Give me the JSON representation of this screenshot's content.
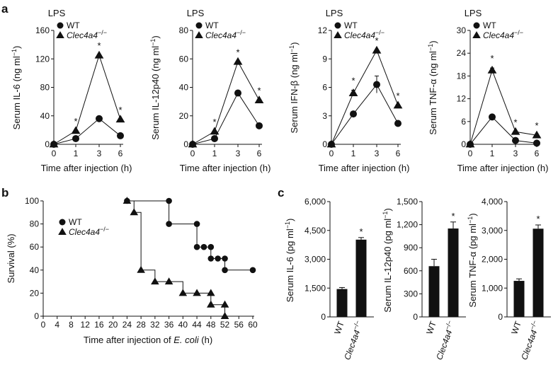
{
  "panels": {
    "a": "a",
    "b": "b",
    "c": "c"
  },
  "legend": {
    "wt": "WT",
    "ko": "Clec4a4",
    "ko_sup": "−/−"
  },
  "chart_data": [
    {
      "id": "a-il6",
      "type": "line",
      "title": "LPS",
      "ylabel": "Serum IL-6 (ng ml",
      "ylabel_sup": "−1",
      "ylabel_end": ")",
      "xlabel": "Time after injection (h)",
      "x": [
        0,
        1,
        3,
        6
      ],
      "x_ticks": [
        "0",
        "1",
        "3",
        "6"
      ],
      "ylim": [
        0,
        160
      ],
      "y_ticks": [
        "0",
        "40",
        "80",
        "120",
        "160"
      ],
      "series": [
        {
          "name": "WT",
          "marker": "circle",
          "values": [
            0,
            8,
            36,
            12
          ]
        },
        {
          "name": "Clec4a4−/−",
          "marker": "triangle",
          "values": [
            0,
            19,
            125,
            35
          ]
        }
      ],
      "significant": [
        false,
        true,
        true,
        true
      ],
      "sig_label": "*"
    },
    {
      "id": "a-il12",
      "type": "line",
      "title": "LPS",
      "ylabel": "Serum IL-12p40 (ng ml",
      "ylabel_sup": "−1",
      "ylabel_end": ")",
      "xlabel": "Time after injection (h)",
      "x": [
        0,
        1,
        3,
        6
      ],
      "x_ticks": [
        "0",
        "1",
        "3",
        "6"
      ],
      "ylim": [
        0,
        80
      ],
      "y_ticks": [
        "0",
        "20",
        "40",
        "60",
        "80"
      ],
      "series": [
        {
          "name": "WT",
          "marker": "circle",
          "values": [
            0,
            4,
            36,
            13
          ]
        },
        {
          "name": "Clec4a4−/−",
          "marker": "triangle",
          "values": [
            0,
            9,
            58,
            31
          ]
        }
      ],
      "significant": [
        false,
        true,
        true,
        true
      ],
      "sig_label": "*"
    },
    {
      "id": "a-ifnb",
      "type": "line",
      "title": "LPS",
      "ylabel": "Serum IFN-β (ng ml",
      "ylabel_sup": "−1",
      "ylabel_end": ")",
      "xlabel": "Time after injection (h)",
      "x": [
        0,
        1,
        3,
        6
      ],
      "x_ticks": [
        "0",
        "1",
        "3",
        "6"
      ],
      "ylim": [
        0,
        12
      ],
      "y_ticks": [
        "0",
        "3",
        "6",
        "9",
        "12"
      ],
      "series": [
        {
          "name": "WT",
          "marker": "circle",
          "values": [
            0,
            3.2,
            6.3,
            2.2
          ],
          "errors": [
            0,
            0,
            0.9,
            0
          ]
        },
        {
          "name": "Clec4a4−/−",
          "marker": "triangle",
          "values": [
            0,
            5.4,
            9.9,
            4.1
          ],
          "errors": [
            0,
            0.3,
            0,
            0
          ]
        }
      ],
      "significant": [
        false,
        true,
        true,
        true
      ],
      "sig_label": "*"
    },
    {
      "id": "a-tnfa",
      "type": "line",
      "title": "LPS",
      "ylabel": "Serum TNF-α (ng ml",
      "ylabel_sup": "−1",
      "ylabel_end": ")",
      "xlabel": "Time after injection (h)",
      "x": [
        0,
        1,
        3,
        6
      ],
      "x_ticks": [
        "0",
        "1",
        "3",
        "6"
      ],
      "ylim": [
        0,
        30
      ],
      "y_ticks": [
        "0",
        "6",
        "12",
        "18",
        "24",
        "30"
      ],
      "series": [
        {
          "name": "WT",
          "marker": "circle",
          "values": [
            0,
            7.2,
            1.0,
            0.3
          ]
        },
        {
          "name": "Clec4a4−/−",
          "marker": "triangle",
          "values": [
            0,
            19.5,
            3.3,
            2.4
          ],
          "errors": [
            0,
            0.6,
            0,
            0
          ]
        }
      ],
      "significant": [
        false,
        true,
        true,
        true
      ],
      "sig_label": "*"
    },
    {
      "id": "b-survival",
      "type": "line",
      "step": true,
      "ylabel": "Survival (%)",
      "xlabel_pre": "Time after injection of ",
      "xlabel_ital": "E. coli",
      "xlabel_post": " (h)",
      "xlim": [
        0,
        60
      ],
      "ylim": [
        0,
        100
      ],
      "x_ticks": [
        "0",
        "4",
        "8",
        "12",
        "16",
        "20",
        "24",
        "28",
        "32",
        "36",
        "40",
        "44",
        "48",
        "52",
        "56",
        "60"
      ],
      "y_ticks": [
        "0",
        "20",
        "40",
        "60",
        "80",
        "100"
      ],
      "series": [
        {
          "name": "WT",
          "marker": "circle",
          "x": [
            24,
            36,
            36,
            44,
            44,
            46,
            48,
            48,
            50,
            52,
            52,
            60
          ],
          "values": [
            100,
            100,
            80,
            80,
            60,
            60,
            60,
            50,
            50,
            50,
            40,
            40
          ]
        },
        {
          "name": "Clec4a4−/−",
          "marker": "triangle",
          "x": [
            24,
            26,
            28,
            32,
            36,
            40,
            44,
            48,
            48,
            52,
            52
          ],
          "values": [
            100,
            90,
            40,
            30,
            30,
            20,
            20,
            20,
            10,
            10,
            0
          ]
        }
      ]
    },
    {
      "id": "c-il6",
      "type": "bar",
      "ylabel": "Serum IL-6 (pg ml",
      "ylabel_sup": "−1",
      "ylabel_end": ")",
      "categories": [
        "WT",
        "Clec4a4−/−"
      ],
      "values": [
        1450,
        4020
      ],
      "errors": [
        80,
        110
      ],
      "ylim": [
        0,
        6000
      ],
      "y_ticks": [
        "0",
        "1,500",
        "3,000",
        "4,500",
        "6,000"
      ],
      "significant": [
        false,
        true
      ],
      "sig_label": "*"
    },
    {
      "id": "c-il12",
      "type": "bar",
      "ylabel": "Serum IL-12p40 (pg ml",
      "ylabel_sup": "−1",
      "ylabel_end": ")",
      "categories": [
        "WT",
        "Clec4a4−/−"
      ],
      "values": [
        660,
        1150
      ],
      "errors": [
        90,
        85
      ],
      "ylim": [
        0,
        1500
      ],
      "y_ticks": [
        "0",
        "300",
        "600",
        "900",
        "1,200",
        "1,500"
      ],
      "significant": [
        false,
        true
      ],
      "sig_label": "*"
    },
    {
      "id": "c-tnfa",
      "type": "bar",
      "ylabel": "Serum TNF-α (pg ml",
      "ylabel_sup": "−1",
      "ylabel_end": ")",
      "categories": [
        "WT",
        "Clec4a4−/−"
      ],
      "values": [
        1250,
        3060
      ],
      "errors": [
        70,
        130
      ],
      "ylim": [
        0,
        4000
      ],
      "y_ticks": [
        "0",
        "1,000",
        "2,000",
        "3,000",
        "4,000"
      ],
      "significant": [
        false,
        true
      ],
      "sig_label": "*"
    }
  ]
}
